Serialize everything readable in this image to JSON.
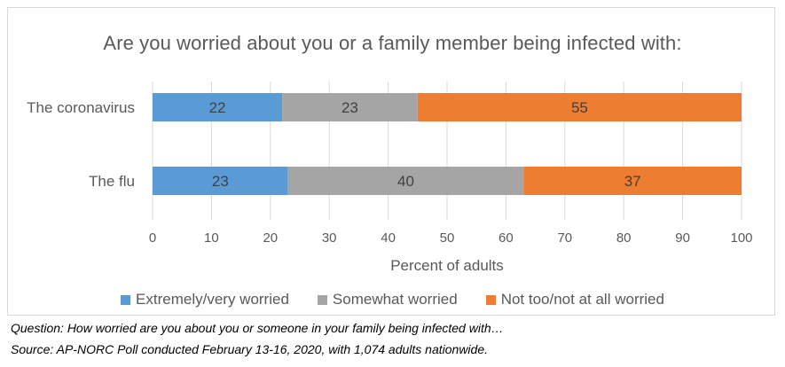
{
  "footnotes": {
    "question": "Question: How worried are you about you or someone in your family being infected with…",
    "source": "Source: AP-NORC Poll conducted February 13-16, 2020, with 1,074 adults nationwide."
  },
  "colors": {
    "extremely": "#5b9bd5",
    "somewhat": "#a5a5a5",
    "not": "#ed7d31",
    "grid": "#d9d9d9",
    "text": "#595959"
  },
  "chart_data": {
    "type": "bar",
    "orientation": "horizontal",
    "stacked": true,
    "title": "Are you worried about you or a family member being infected with:",
    "xlabel": "Percent of adults",
    "ylabel": "",
    "xlim": [
      0,
      100
    ],
    "xticks": [
      0,
      10,
      20,
      30,
      40,
      50,
      60,
      70,
      80,
      90,
      100
    ],
    "grid": "vertical",
    "legend_position": "bottom",
    "categories": [
      "The coronavirus",
      "The flu"
    ],
    "series": [
      {
        "name": "Extremely/very worried",
        "values": [
          22,
          23
        ],
        "color_key": "extremely"
      },
      {
        "name": "Somewhat worried",
        "values": [
          23,
          40
        ],
        "color_key": "somewhat"
      },
      {
        "name": "Not too/not at all worried",
        "values": [
          55,
          37
        ],
        "color_key": "not"
      }
    ]
  }
}
